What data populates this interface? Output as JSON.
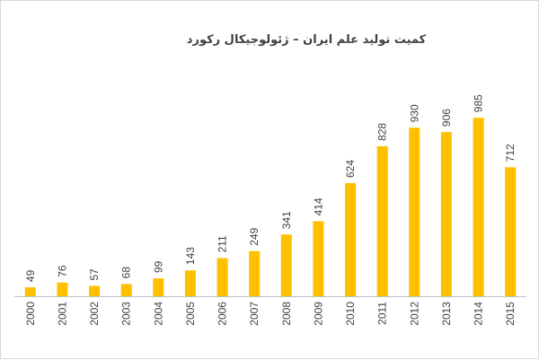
{
  "colors": {
    "bar": "#FFC000",
    "axis": "#bfbfbf",
    "text": "#404040"
  },
  "chart_data": {
    "type": "bar",
    "title": "کمیت تولید علم ایران – ژئولوجیکال رکورد",
    "xlabel": "",
    "ylabel": "",
    "categories": [
      "2000",
      "2001",
      "2002",
      "2003",
      "2004",
      "2005",
      "2006",
      "2007",
      "2008",
      "2009",
      "2010",
      "2011",
      "2012",
      "2013",
      "2014",
      "2015"
    ],
    "values": [
      49,
      76,
      57,
      68,
      99,
      143,
      211,
      249,
      341,
      414,
      624,
      828,
      930,
      906,
      985,
      712
    ],
    "ylim": [
      0,
      1085
    ],
    "grid": false,
    "legend": "none"
  }
}
